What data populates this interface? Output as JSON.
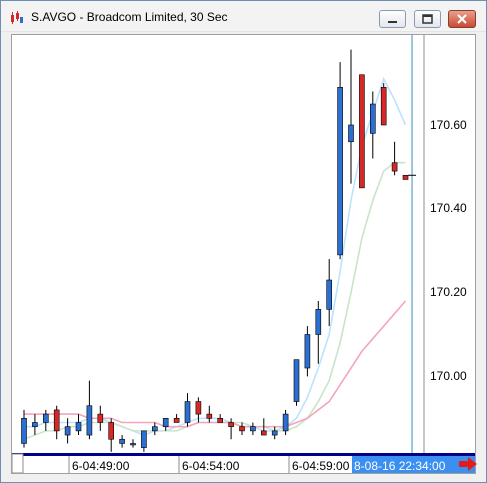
{
  "window": {
    "title": "S.AVGO - Broadcom Limited, 30 Sec",
    "icon": "candlestick-chart-icon",
    "buttons": [
      "minimize",
      "restore",
      "close"
    ]
  },
  "colors": {
    "up": "#2a6fd1",
    "down": "#d62828",
    "ma_fast": "#bde2ff",
    "ma_slow": "#c9e5c9",
    "ma_long": "#f4a6b8",
    "cursor": "#3a8fb7",
    "time_axis_bar": "#00008b",
    "badge_bg": "#3a8ff0",
    "arrow": "#e31b1b"
  },
  "time_axis": {
    "ticks": [
      "6-04:49:00",
      "6-04:54:00",
      "6-04:59:00"
    ],
    "current": "8-08-16 22:34:00"
  },
  "chart_data": {
    "type": "candlestick",
    "title": "S.AVGO - Broadcom Limited, 30 Sec",
    "y_ticks": [
      "170.60",
      "170.40",
      "170.20",
      "170.00"
    ],
    "ylim": [
      169.82,
      170.82
    ],
    "grid": false,
    "candles": [
      {
        "o": 169.84,
        "h": 169.92,
        "l": 169.83,
        "c": 169.9
      },
      {
        "o": 169.88,
        "h": 169.91,
        "l": 169.86,
        "c": 169.89
      },
      {
        "o": 169.89,
        "h": 169.92,
        "l": 169.87,
        "c": 169.91
      },
      {
        "o": 169.92,
        "h": 169.93,
        "l": 169.85,
        "c": 169.87
      },
      {
        "o": 169.86,
        "h": 169.9,
        "l": 169.84,
        "c": 169.88
      },
      {
        "o": 169.87,
        "h": 169.91,
        "l": 169.86,
        "c": 169.89
      },
      {
        "o": 169.86,
        "h": 169.99,
        "l": 169.85,
        "c": 169.93
      },
      {
        "o": 169.91,
        "h": 169.93,
        "l": 169.87,
        "c": 169.89
      },
      {
        "o": 169.89,
        "h": 169.9,
        "l": 169.82,
        "c": 169.85
      },
      {
        "o": 169.84,
        "h": 169.86,
        "l": 169.83,
        "c": 169.85
      },
      {
        "o": 169.84,
        "h": 169.85,
        "l": 169.83,
        "c": 169.84
      },
      {
        "o": 169.83,
        "h": 169.87,
        "l": 169.82,
        "c": 169.87
      },
      {
        "o": 169.87,
        "h": 169.89,
        "l": 169.86,
        "c": 169.88
      },
      {
        "o": 169.88,
        "h": 169.9,
        "l": 169.87,
        "c": 169.9
      },
      {
        "o": 169.9,
        "h": 169.91,
        "l": 169.89,
        "c": 169.89
      },
      {
        "o": 169.89,
        "h": 169.96,
        "l": 169.88,
        "c": 169.94
      },
      {
        "o": 169.94,
        "h": 169.95,
        "l": 169.89,
        "c": 169.91
      },
      {
        "o": 169.91,
        "h": 169.93,
        "l": 169.89,
        "c": 169.9
      },
      {
        "o": 169.9,
        "h": 169.91,
        "l": 169.89,
        "c": 169.89
      },
      {
        "o": 169.89,
        "h": 169.9,
        "l": 169.85,
        "c": 169.88
      },
      {
        "o": 169.88,
        "h": 169.89,
        "l": 169.86,
        "c": 169.87
      },
      {
        "o": 169.87,
        "h": 169.89,
        "l": 169.86,
        "c": 169.88
      },
      {
        "o": 169.87,
        "h": 169.9,
        "l": 169.86,
        "c": 169.86
      },
      {
        "o": 169.86,
        "h": 169.88,
        "l": 169.85,
        "c": 169.87
      },
      {
        "o": 169.87,
        "h": 169.92,
        "l": 169.86,
        "c": 169.91
      },
      {
        "o": 169.94,
        "h": 170.04,
        "l": 169.93,
        "c": 170.04
      },
      {
        "o": 170.02,
        "h": 170.12,
        "l": 170.0,
        "c": 170.1
      },
      {
        "o": 170.1,
        "h": 170.18,
        "l": 170.03,
        "c": 170.16
      },
      {
        "o": 170.16,
        "h": 170.28,
        "l": 170.12,
        "c": 170.23
      },
      {
        "o": 170.29,
        "h": 170.75,
        "l": 170.28,
        "c": 170.69
      },
      {
        "o": 170.56,
        "h": 170.78,
        "l": 170.46,
        "c": 170.6
      },
      {
        "o": 170.72,
        "h": 170.72,
        "l": 170.45,
        "c": 170.45
      },
      {
        "o": 170.58,
        "h": 170.68,
        "l": 170.52,
        "c": 170.65
      },
      {
        "o": 170.69,
        "h": 170.7,
        "l": 170.6,
        "c": 170.6
      },
      {
        "o": 170.51,
        "h": 170.56,
        "l": 170.48,
        "c": 170.49
      },
      {
        "o": 170.48,
        "h": 170.48,
        "l": 170.47,
        "c": 170.47
      }
    ],
    "moving_averages": [
      {
        "color": "#bde2ff",
        "values": [
          169.88,
          169.88,
          169.89,
          169.89,
          169.89,
          169.89,
          169.9,
          169.9,
          169.89,
          169.88,
          169.87,
          169.86,
          169.87,
          169.87,
          169.88,
          169.89,
          169.9,
          169.9,
          169.9,
          169.89,
          169.88,
          169.88,
          169.87,
          169.87,
          169.88,
          169.9,
          169.95,
          170.02,
          170.1,
          170.25,
          170.42,
          170.55,
          170.63,
          170.71,
          170.66,
          170.6
        ]
      },
      {
        "color": "#c9e5c9",
        "values": [
          169.85,
          169.86,
          169.87,
          169.87,
          169.88,
          169.88,
          169.89,
          169.89,
          169.89,
          169.88,
          169.87,
          169.87,
          169.87,
          169.87,
          169.87,
          169.88,
          169.89,
          169.89,
          169.89,
          169.89,
          169.89,
          169.88,
          169.88,
          169.87,
          169.87,
          169.88,
          169.9,
          169.94,
          169.99,
          170.08,
          170.2,
          170.33,
          170.42,
          170.49,
          170.51,
          170.51
        ]
      },
      {
        "color": "#f4a6b8",
        "values": [
          169.91,
          169.91,
          169.91,
          169.91,
          169.91,
          169.91,
          169.9,
          169.9,
          169.9,
          169.89,
          169.89,
          169.89,
          169.89,
          169.88,
          169.88,
          169.88,
          169.89,
          169.89,
          169.89,
          169.89,
          169.88,
          169.88,
          169.88,
          169.88,
          169.88,
          169.89,
          169.9,
          169.92,
          169.94,
          169.98,
          170.02,
          170.06,
          170.09,
          170.12,
          170.15,
          170.18
        ]
      }
    ],
    "cursor_index": 35.6,
    "last_price_marker": 170.48
  }
}
